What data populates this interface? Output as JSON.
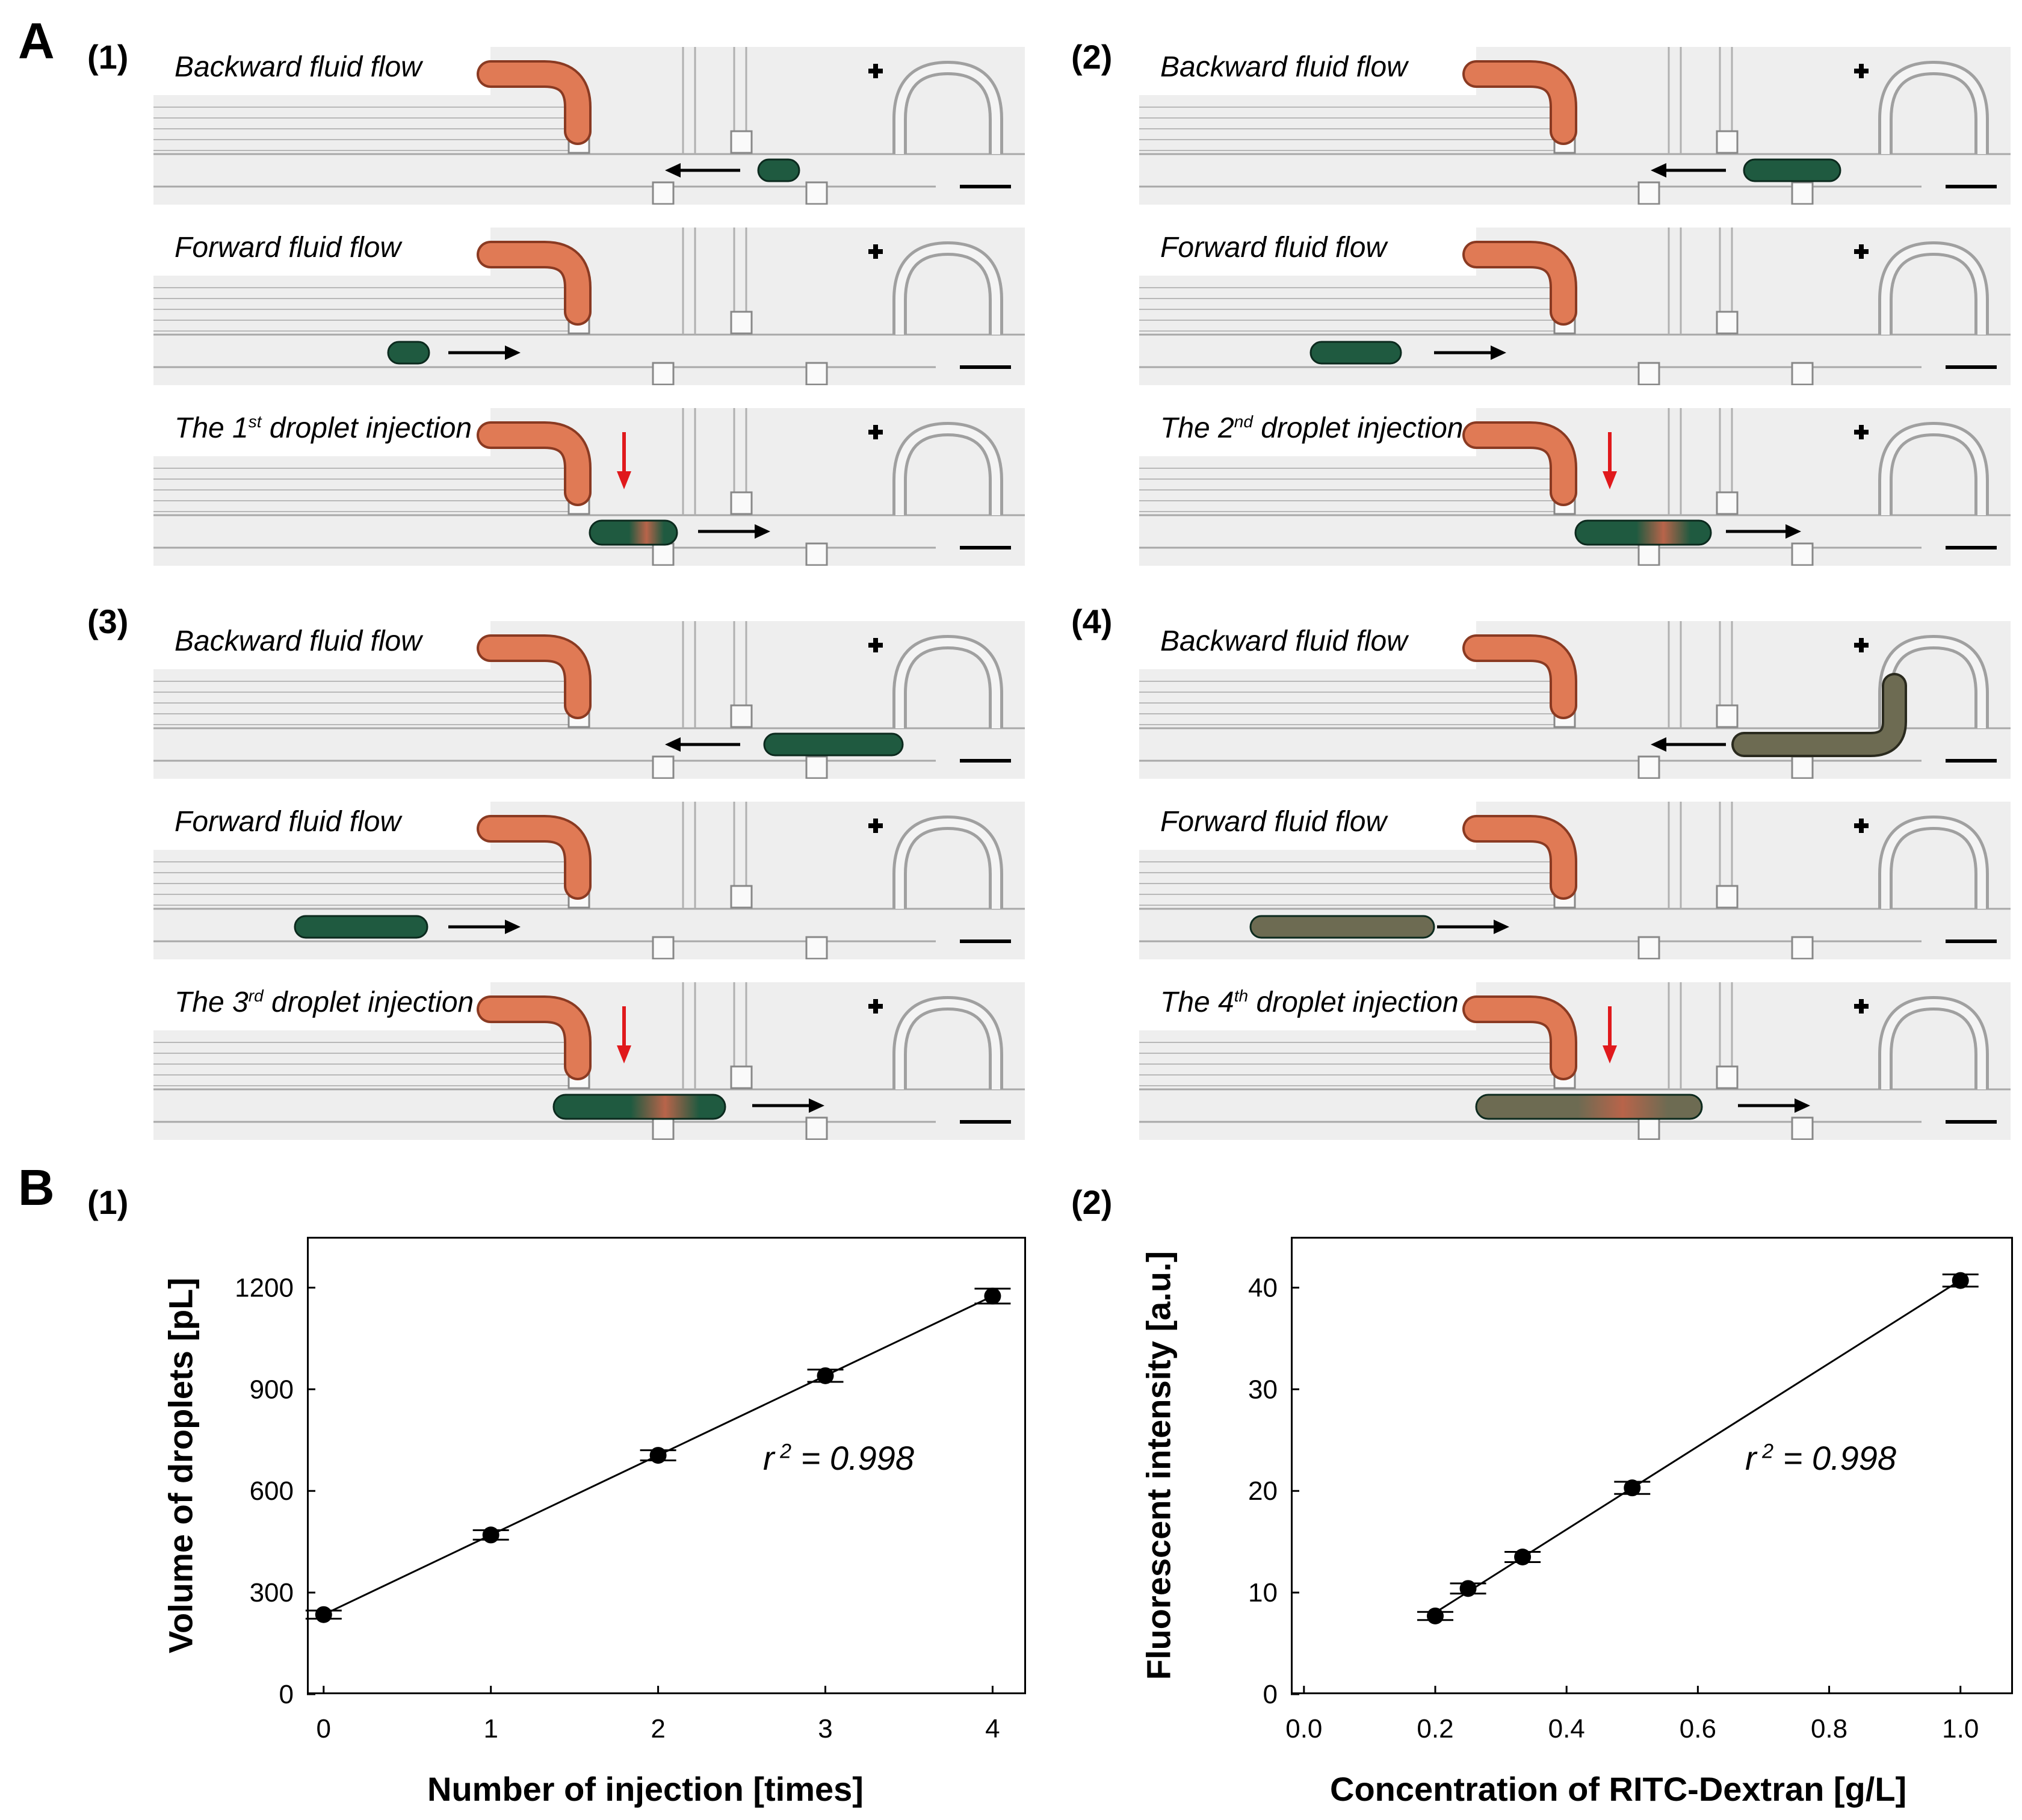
{
  "panel_A": {
    "letter": "A",
    "subpanels": [
      {
        "label": "(1)",
        "frames": [
          {
            "caption": "Backward fluid flow",
            "direction": "backward",
            "droplet": "small-green-upstream"
          },
          {
            "caption": "Forward fluid flow",
            "direction": "forward",
            "droplet": "small-green-left"
          },
          {
            "caption_pre": "The 1",
            "caption_sup": "st",
            "caption_post": " droplet injection",
            "direction": "injection",
            "droplet": "injecting"
          }
        ]
      },
      {
        "label": "(2)",
        "frames": [
          {
            "caption": "Backward fluid flow",
            "direction": "backward",
            "droplet": "medium-green-upstream"
          },
          {
            "caption": "Forward fluid flow",
            "direction": "forward",
            "droplet": "medium-green-left"
          },
          {
            "caption_pre": "The 2",
            "caption_sup": "nd",
            "caption_post": " droplet injection",
            "direction": "injection",
            "droplet": "injecting"
          }
        ]
      },
      {
        "label": "(3)",
        "frames": [
          {
            "caption": "Backward fluid flow",
            "direction": "backward",
            "droplet": "long-green-upstream"
          },
          {
            "caption": "Forward fluid flow",
            "direction": "forward",
            "droplet": "long-green-left"
          },
          {
            "caption_pre": "The 3",
            "caption_sup": "rd",
            "caption_post": " droplet injection",
            "direction": "injection",
            "droplet": "injecting"
          }
        ]
      },
      {
        "label": "(4)",
        "frames": [
          {
            "caption": "Backward fluid flow",
            "direction": "backward",
            "droplet": "longest-olive-upstream"
          },
          {
            "caption": "Forward fluid flow",
            "direction": "forward",
            "droplet": "longest-olive-left"
          },
          {
            "caption_pre": "The 4",
            "caption_sup": "th",
            "caption_post": " droplet injection",
            "direction": "injection",
            "droplet": "injecting"
          }
        ]
      }
    ],
    "colors": {
      "reagent": "#e07a55",
      "droplet_green": "#1f5a40",
      "droplet_olive": "#6d6b52",
      "channel_bg": "#eeeeee",
      "arrow_black": "#000000",
      "arrow_red": "#e0191c"
    }
  },
  "panel_B": {
    "letter": "B",
    "charts": [
      {
        "label": "(1)",
        "r2_text": "r 2 = 0.998"
      },
      {
        "label": "(2)",
        "r2_text": "r 2 = 0.998"
      }
    ]
  },
  "chart_data": [
    {
      "type": "scatter",
      "xlabel": "Number of injection [times]",
      "ylabel": "Volume of droplets [pL]",
      "xlim": [
        -0.1,
        4.2
      ],
      "ylim": [
        0,
        1350
      ],
      "xticks": [
        0,
        1,
        2,
        3,
        4
      ],
      "yticks": [
        0,
        300,
        600,
        900,
        1200
      ],
      "x": [
        0,
        1,
        2,
        3,
        4
      ],
      "y": [
        235,
        470,
        705,
        940,
        1175
      ],
      "yerr": [
        12,
        14,
        15,
        18,
        22
      ],
      "fit_line": true,
      "annotation": "r 2 = 0.998",
      "grid": false
    },
    {
      "type": "scatter",
      "xlabel": "Concentration of RITC-Dextran [g/L]",
      "ylabel": "Fluorescent intensity [a.u.]",
      "xlim": [
        -0.02,
        1.08
      ],
      "ylim": [
        0,
        45
      ],
      "xticks": [
        "0.0",
        "0.2",
        "0.4",
        "0.6",
        "0.8",
        "1.0"
      ],
      "yticks": [
        0,
        10,
        20,
        30,
        40
      ],
      "x": [
        0.2,
        0.25,
        0.333,
        0.5,
        1.0
      ],
      "y": [
        7.7,
        10.4,
        13.5,
        20.3,
        40.7
      ],
      "yerr": [
        0.4,
        0.5,
        0.5,
        0.6,
        0.6
      ],
      "fit_line": true,
      "annotation": "r 2 = 0.998",
      "grid": false
    }
  ]
}
